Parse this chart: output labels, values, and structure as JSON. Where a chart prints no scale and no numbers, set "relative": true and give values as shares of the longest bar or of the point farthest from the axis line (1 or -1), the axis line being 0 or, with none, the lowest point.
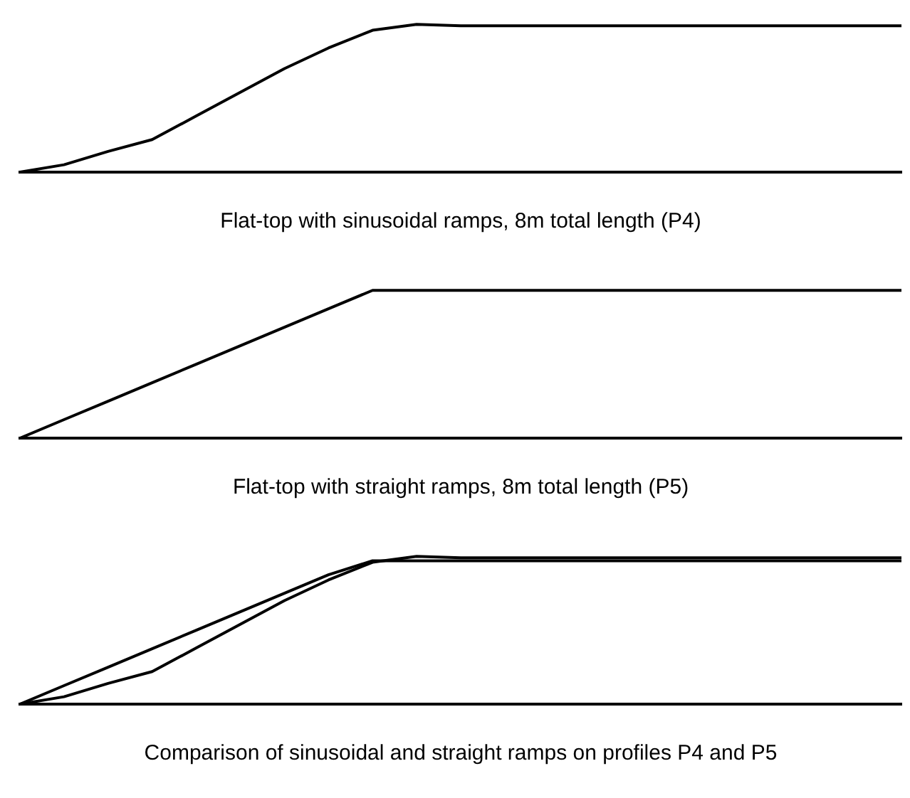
{
  "chart_data": [
    {
      "type": "line",
      "relative": true,
      "xlabel": "Flat-top with sinusoidal ramps, 8m total length (P4)",
      "categories": [
        null,
        null,
        null,
        null,
        null,
        null,
        null,
        null,
        null,
        null,
        null,
        null,
        null,
        null,
        null,
        null,
        null,
        null,
        null,
        null,
        null
      ],
      "legend": false,
      "marker": "none",
      "series": [
        {
          "color": "#000000",
          "values": [
            0,
            0.05,
            0.14,
            0.22,
            0.38,
            0.54,
            0.7,
            0.84,
            0.96,
            1,
            0.99,
            0.99,
            0.99,
            0.99,
            0.99,
            0.99,
            0.99,
            0.99,
            0.99,
            0.99,
            0.99
          ]
        }
      ]
    },
    {
      "type": "line",
      "relative": true,
      "xlabel": "Flat-top with straight ramps, 8m total length (P5)",
      "categories": [
        null,
        null,
        null,
        null,
        null,
        null,
        null,
        null,
        null,
        null,
        null,
        null,
        null,
        null,
        null,
        null,
        null,
        null,
        null,
        null,
        null
      ],
      "legend": false,
      "marker": "none",
      "series": [
        {
          "color": "#000000",
          "values": [
            0,
            0.125,
            0.25,
            0.375,
            0.5,
            0.625,
            0.75,
            0.875,
            1,
            1,
            1,
            1,
            1,
            1,
            1,
            1,
            1,
            1,
            1,
            1,
            1
          ]
        }
      ]
    },
    {
      "type": "line",
      "relative": true,
      "xlabel": "Comparison of sinusoidal and straight ramps on profiles P4 and P5",
      "categories": [
        null,
        null,
        null,
        null,
        null,
        null,
        null,
        null,
        null,
        null,
        null,
        null,
        null,
        null,
        null,
        null,
        null,
        null,
        null,
        null,
        null
      ],
      "legend": false,
      "marker": "none",
      "series": [
        {
          "color": "#000000",
          "values": [
            0,
            0.05,
            0.14,
            0.22,
            0.38,
            0.54,
            0.7,
            0.84,
            0.96,
            1,
            0.99,
            0.99,
            0.99,
            0.99,
            0.99,
            0.99,
            0.99,
            0.99,
            0.99,
            0.99,
            0.99
          ]
        },
        {
          "color": "#000000",
          "values": [
            0,
            0.125,
            0.25,
            0.375,
            0.5,
            0.625,
            0.75,
            0.875,
            0.97,
            0.97,
            0.97,
            0.97,
            0.97,
            0.97,
            0.97,
            0.97,
            0.97,
            0.97,
            0.97,
            0.97,
            0.97
          ]
        }
      ]
    }
  ]
}
